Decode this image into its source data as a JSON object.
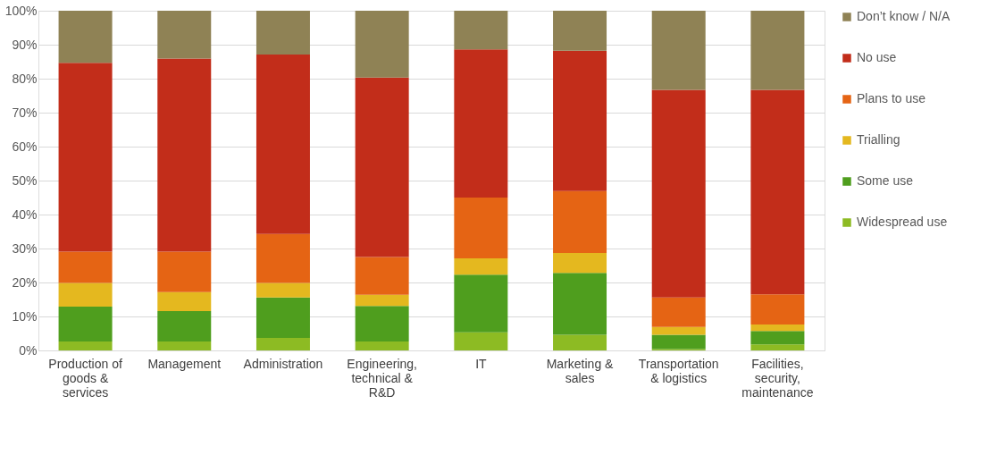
{
  "chart_data": {
    "type": "bar",
    "stacked": true,
    "categories": [
      "Production of goods & services",
      "Management",
      "Administration",
      "Engineering, technical & R&D",
      "IT",
      "Marketing & sales",
      "Transportation & logistics",
      "Facilities, security, maintenance"
    ],
    "series": [
      {
        "name": "Widespread use",
        "color": "#8dbb23",
        "values": [
          2.6,
          2.6,
          3.7,
          2.6,
          5.3,
          4.6,
          0.4,
          1.8
        ]
      },
      {
        "name": "Some use",
        "color": "#4f9e1e",
        "values": [
          10.3,
          9.0,
          11.9,
          10.5,
          17.0,
          18.2,
          4.2,
          3.9
        ]
      },
      {
        "name": "Trialling",
        "color": "#e4b81f",
        "values": [
          7.0,
          5.6,
          4.3,
          3.3,
          4.8,
          5.9,
          2.3,
          1.9
        ]
      },
      {
        "name": "Plans to use",
        "color": "#e56414",
        "values": [
          9.2,
          11.9,
          14.4,
          11.1,
          17.9,
          18.2,
          8.7,
          8.9
        ]
      },
      {
        "name": "No use",
        "color": "#c22d1a",
        "values": [
          55.6,
          56.8,
          52.8,
          52.8,
          43.6,
          41.3,
          61.1,
          60.2
        ]
      },
      {
        "name": "Don’t know / N/A",
        "color": "#8f8255",
        "values": [
          15.3,
          14.1,
          12.9,
          19.7,
          11.4,
          11.8,
          23.3,
          23.3
        ]
      }
    ],
    "ylim": [
      0,
      100
    ],
    "yticks": [
      {
        "value": 0,
        "label": "0%"
      },
      {
        "value": 10,
        "label": "10%"
      },
      {
        "value": 20,
        "label": "20%"
      },
      {
        "value": 30,
        "label": "30%"
      },
      {
        "value": 40,
        "label": "40%"
      },
      {
        "value": 50,
        "label": "50%"
      },
      {
        "value": 60,
        "label": "60%"
      },
      {
        "value": 70,
        "label": "70%"
      },
      {
        "value": 80,
        "label": "80%"
      },
      {
        "value": 90,
        "label": "90%"
      },
      {
        "value": 100,
        "label": "100%"
      }
    ],
    "grid": "y",
    "legend": "right"
  }
}
